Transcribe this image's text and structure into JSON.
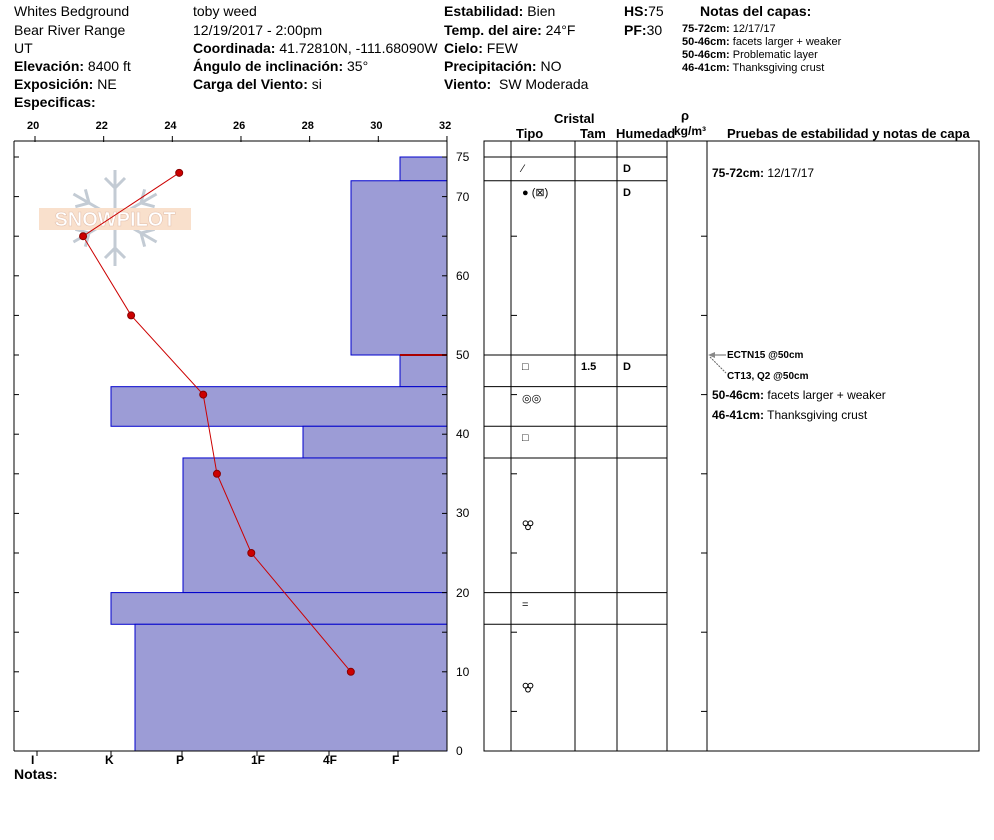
{
  "header": {
    "location": "Whites Bedground",
    "range": "Bear River Range",
    "state": "UT",
    "elevation_label": "Elevación:",
    "elevation": "8400 ft",
    "aspect_label": "Exposición:",
    "aspect": "NE",
    "specifics_label": "Especificas:",
    "observer": "toby weed",
    "datetime": "12/19/2017 - 2:00pm",
    "coord_label": "Coordinada:",
    "coord": "41.72810N, -111.68090W",
    "slope_label": "Ángulo de inclinación:",
    "slope": "35°",
    "windload_label": "Carga del Viento:",
    "windload": "si",
    "stability_label": "Estabilidad:",
    "stability": "Bien",
    "airtemp_label": "Temp. del aire:",
    "airtemp": "24°F",
    "sky_label": "Cielo:",
    "sky": "FEW",
    "precip_label": "Precipitación:",
    "precip": "NO",
    "wind_label": "Viento:",
    "wind": "SW Moderada",
    "hs_label": "HS:",
    "hs": "75",
    "pf_label": "PF:",
    "pf": "30",
    "layer_notes_title": "Notas del capas:",
    "layer_notes": [
      {
        "range": "75-72cm:",
        "text": "12/17/17"
      },
      {
        "range": "50-46cm:",
        "text": "facets larger + weaker"
      },
      {
        "range": "50-46cm:",
        "text": "Problematic layer"
      },
      {
        "range": "46-41cm:",
        "text": "Thanksgiving crust"
      }
    ]
  },
  "logo_text": "SNOWPILOT",
  "notes_label": "Notas:",
  "table": {
    "cristal": "Cristal",
    "tipo": "Tipo",
    "tam": "Tam",
    "humedad": "Humedad",
    "rho": "ρ",
    "density_unit": "kg/m³",
    "tests_header": "Pruebas de estabilidad y notas de capa",
    "rows": [
      {
        "top": 75,
        "bottom": 72,
        "type": "⁄",
        "size": "",
        "moisture": "D"
      },
      {
        "top": 72,
        "bottom": 50,
        "type": "● (⊠)",
        "size": "",
        "moisture": "D"
      },
      {
        "top": 50,
        "bottom": 46,
        "type": "□",
        "size": "1.5",
        "moisture": "D"
      },
      {
        "top": 46,
        "bottom": 41,
        "type": "◎◎",
        "size": "",
        "moisture": ""
      },
      {
        "top": 41,
        "bottom": 37,
        "type": "□",
        "size": "",
        "moisture": ""
      },
      {
        "top": 37,
        "bottom": 20,
        "type": "clusters",
        "size": "",
        "moisture": ""
      },
      {
        "top": 20,
        "bottom": 16,
        "type": "=",
        "size": "",
        "moisture": ""
      },
      {
        "top": 16,
        "bottom": 0,
        "type": "clusters",
        "size": "",
        "moisture": ""
      }
    ],
    "tests": [
      "ECTN15 @50cm",
      "CT13, Q2 @50cm"
    ],
    "notes": [
      {
        "range": "75-72cm:",
        "text": "12/17/17"
      },
      {
        "range": "50-46cm:",
        "text": "facets larger + weaker"
      },
      {
        "range": "46-41cm:",
        "text": "Thanksgiving crust"
      }
    ]
  },
  "chart_data": {
    "type": "snow-profile",
    "temp_axis": {
      "ticks": [
        20,
        22,
        24,
        26,
        28,
        30,
        32
      ],
      "range": [
        20,
        32
      ]
    },
    "depth_axis": {
      "ticks": [
        0,
        10,
        20,
        30,
        40,
        50,
        60,
        70,
        75
      ],
      "range": [
        0,
        75
      ]
    },
    "hardness_axis": {
      "ticks": [
        "I",
        "K",
        "P",
        "1F",
        "4F",
        "F"
      ]
    },
    "temperature_profile": [
      {
        "depth": 73,
        "temp": 24.2
      },
      {
        "depth": 65,
        "temp": 21.4
      },
      {
        "depth": 55,
        "temp": 22.8
      },
      {
        "depth": 45,
        "temp": 24.9
      },
      {
        "depth": 35,
        "temp": 25.3
      },
      {
        "depth": 25,
        "temp": 26.3
      },
      {
        "depth": 10,
        "temp": 29.2
      }
    ],
    "layers": [
      {
        "top": 75,
        "bottom": 72,
        "hardness": "F"
      },
      {
        "top": 72,
        "bottom": 50,
        "hardness": "4F-F"
      },
      {
        "top": 50,
        "bottom": 46,
        "hardness": "F"
      },
      {
        "top": 46,
        "bottom": 41,
        "hardness": "K"
      },
      {
        "top": 41,
        "bottom": 37,
        "hardness": "4F"
      },
      {
        "top": 37,
        "bottom": 20,
        "hardness": "P"
      },
      {
        "top": 20,
        "bottom": 16,
        "hardness": "K"
      },
      {
        "top": 16,
        "bottom": 0,
        "hardness": "K-P"
      }
    ],
    "test_depth": 50,
    "colors": {
      "layer_fill": "#9c9cd6",
      "layer_edge": "#0000cc",
      "temp_line": "#cc0000",
      "test_line": "#aa0000"
    }
  }
}
